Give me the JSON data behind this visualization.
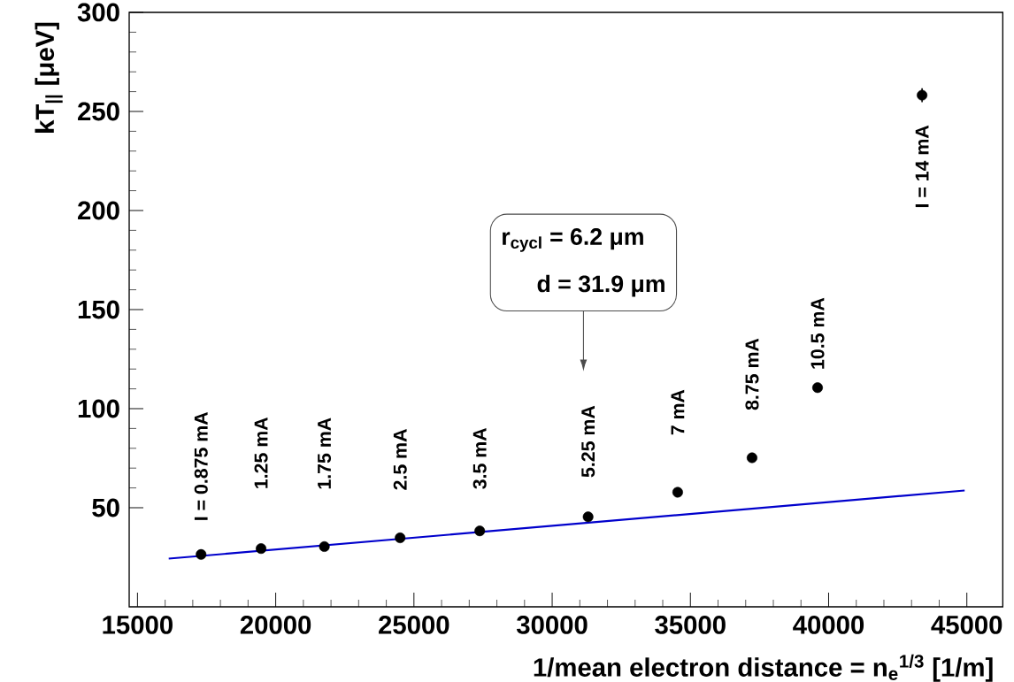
{
  "chart_data": {
    "type": "scatter",
    "xlabel": "1/mean electron distance = n$_{e}$$^{1/3}$ [1/m]",
    "ylabel": "kT$_{||}$ [μeV]",
    "xlim": [
      14700,
      46300
    ],
    "ylim": [
      0,
      300
    ],
    "xticks": [
      15000,
      20000,
      25000,
      30000,
      35000,
      40000,
      45000
    ],
    "yticks": [
      50,
      100,
      150,
      200,
      250,
      300
    ],
    "grid": false,
    "series": [
      {
        "marker": "circle",
        "color": "#000000",
        "x": [
          17300,
          19470,
          21760,
          24500,
          27380,
          31300,
          34540,
          37230,
          39600,
          43380
        ],
        "values": [
          26.4,
          29.4,
          30.4,
          34.8,
          38.3,
          45.4,
          57.8,
          75.2,
          110.6,
          258.2
        ],
        "errors": [
          null,
          null,
          null,
          null,
          null,
          null,
          null,
          null,
          null,
          3.5
        ]
      },
      {
        "type": "line",
        "marker": "none",
        "color": "#0000cc",
        "x": [
          16130,
          44920
        ],
        "values": [
          24.3,
          58.7
        ]
      }
    ],
    "annotations": [
      "I = 0.875 mA",
      "1.25 mA",
      "1.75 mA",
      "2.5 mA",
      "3.5 mA",
      "5.25 mA",
      "7 mA",
      "8.75 mA",
      "10.5 mA",
      "I = 14 mA",
      "r$_{cycl}$ = 6.2 μm",
      "d = 31.9 μm"
    ]
  }
}
